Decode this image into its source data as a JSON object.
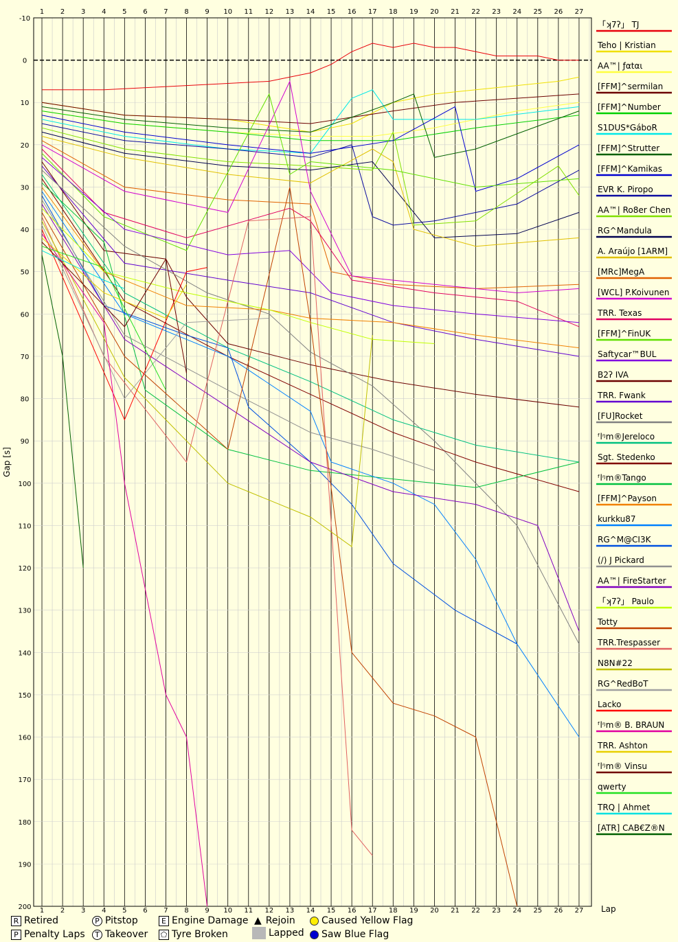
{
  "chart_data": {
    "type": "line",
    "title": "",
    "xlabel": "Lap",
    "ylabel": "Gap [s]",
    "xlim": [
      0.6,
      27.6
    ],
    "ylim": [
      -10,
      200
    ],
    "x_ticks": [
      1,
      2,
      3,
      4,
      5,
      6,
      7,
      8,
      9,
      10,
      11,
      12,
      13,
      14,
      15,
      16,
      17,
      18,
      19,
      20,
      21,
      22,
      23,
      24,
      25,
      26,
      27
    ],
    "y_ticks": [
      -10,
      0,
      10,
      20,
      30,
      40,
      50,
      60,
      70,
      80,
      90,
      100,
      110,
      120,
      130,
      140,
      150,
      160,
      170,
      180,
      190,
      200
    ],
    "grid": true,
    "legend_position": "right",
    "series": [
      {
        "name": "「ʞ7ʔ」 TJ",
        "color": "#e8000b",
        "x": [
          1,
          4,
          8,
          12,
          14,
          15,
          16,
          17,
          18,
          19,
          20,
          21,
          22,
          23,
          24,
          25,
          26,
          27
        ],
        "y": [
          7,
          7,
          6,
          5,
          3,
          1,
          -2,
          -4,
          -3,
          -4,
          -3,
          -3,
          -2,
          -1,
          -1,
          -1,
          0,
          0
        ]
      },
      {
        "name": "Teho | Kristian",
        "color": "#f0e000",
        "x": [
          1,
          5,
          10,
          14,
          16,
          18,
          20,
          22,
          24,
          26,
          27
        ],
        "y": [
          10,
          13,
          14,
          17,
          15,
          10,
          8,
          7,
          6,
          5,
          4
        ]
      },
      {
        "name": "AA™| ƒαtαι",
        "color": "#ffff40",
        "x": [
          1,
          5,
          10,
          14,
          17,
          20,
          24,
          27
        ],
        "y": [
          12,
          15,
          17,
          18,
          18,
          16,
          12,
          10
        ]
      },
      {
        "name": "[FFM]^sermilan",
        "color": "#6b0000",
        "x": [
          1,
          5,
          10,
          14,
          18,
          21,
          24,
          27
        ],
        "y": [
          10,
          13,
          14,
          15,
          12,
          10,
          9,
          8
        ]
      },
      {
        "name": "[FFM]^Number",
        "color": "#00d000",
        "x": [
          1,
          5,
          10,
          14,
          18,
          22,
          27
        ],
        "y": [
          12,
          15,
          17,
          19,
          19,
          16,
          13
        ]
      },
      {
        "name": "S1DUS*GáboR",
        "color": "#00e8e8",
        "x": [
          1,
          5,
          10,
          14,
          16,
          17,
          18,
          22,
          27
        ],
        "y": [
          14,
          18,
          21,
          22,
          9,
          7,
          14,
          14,
          11
        ]
      },
      {
        "name": "[FFM]^Strutter",
        "color": "#006000",
        "x": [
          1,
          5,
          10,
          14,
          18,
          19,
          20,
          22,
          27
        ],
        "y": [
          11,
          14,
          16,
          17,
          10,
          8,
          23,
          21,
          12
        ]
      },
      {
        "name": "[FFM]^Kamikas",
        "color": "#0000d0",
        "x": [
          1,
          5,
          10,
          14,
          18,
          21,
          22,
          24,
          27
        ],
        "y": [
          13,
          17,
          20,
          22,
          19,
          11,
          31,
          28,
          20
        ]
      },
      {
        "name": "EVR K. Piropo",
        "color": "#0a0aa0",
        "x": [
          1,
          5,
          10,
          14,
          16,
          17,
          18,
          20,
          24,
          27
        ],
        "y": [
          15,
          19,
          21,
          23,
          20,
          37,
          39,
          38,
          34,
          26
        ]
      },
      {
        "name": "AA™| Ro8er Chen",
        "color": "#80e000",
        "x": [
          1,
          5,
          10,
          14,
          17,
          18,
          19,
          22,
          26,
          27
        ],
        "y": [
          16,
          21,
          24,
          25,
          26,
          17,
          39,
          38,
          25,
          32
        ]
      },
      {
        "name": "RG^Mandula",
        "color": "#000050",
        "x": [
          1,
          5,
          10,
          14,
          17,
          20,
          24,
          27
        ],
        "y": [
          17,
          22,
          25,
          26,
          24,
          42,
          41,
          36
        ]
      },
      {
        "name": "A. Araújo [1ARM]",
        "color": "#e0c000",
        "x": [
          1,
          5,
          10,
          14,
          17,
          18,
          19,
          22,
          27
        ],
        "y": [
          18,
          23,
          27,
          29,
          21,
          24,
          40,
          44,
          42
        ]
      },
      {
        "name": "[MRc]MegA",
        "color": "#e06000",
        "x": [
          1,
          5,
          10,
          14,
          15,
          18,
          22,
          27
        ],
        "y": [
          19,
          30,
          33,
          34,
          50,
          53,
          54,
          53
        ]
      },
      {
        "name": "[WCL] P.Koivunen",
        "color": "#d000d0",
        "x": [
          1,
          5,
          10,
          13,
          14,
          16,
          20,
          24,
          27
        ],
        "y": [
          20,
          31,
          36,
          5,
          31,
          51,
          53,
          55,
          54
        ]
      },
      {
        "name": "TRR. Texas",
        "color": "#e00060",
        "x": [
          1,
          4,
          8,
          13,
          14,
          16,
          20,
          24,
          27
        ],
        "y": [
          21,
          36,
          42,
          35,
          38,
          52,
          55,
          57,
          63
        ]
      },
      {
        "name": "[FFM]^FinUK",
        "color": "#60e000",
        "x": [
          1,
          4,
          8,
          12,
          13,
          14,
          18,
          22,
          27
        ],
        "y": [
          22,
          37,
          45,
          8,
          27,
          24,
          26,
          30,
          28
        ]
      },
      {
        "name": "Saftycar™BUL",
        "color": "#8000e0",
        "x": [
          1,
          5,
          10,
          13,
          14,
          15,
          18,
          22,
          27
        ],
        "y": [
          23,
          40,
          46,
          45,
          50,
          55,
          58,
          60,
          62
        ]
      },
      {
        "name": "B2ʔ IVA",
        "color": "#6b0000",
        "x": [
          1,
          4,
          7,
          8,
          10,
          14,
          18,
          22,
          27
        ],
        "y": [
          24,
          45,
          47,
          56,
          67,
          72,
          76,
          79,
          82
        ]
      },
      {
        "name": "TRR. Fwank",
        "color": "#6000d0",
        "x": [
          1,
          5,
          10,
          14,
          18,
          22,
          27
        ],
        "y": [
          25,
          48,
          52,
          55,
          62,
          66,
          70
        ]
      },
      {
        "name": "[FU]Rocket",
        "color": "#808080",
        "x": [
          1,
          5,
          9,
          12,
          14,
          17,
          20,
          24,
          27
        ],
        "y": [
          26,
          44,
          55,
          60,
          69,
          77,
          90,
          110,
          138
        ]
      },
      {
        "name": "ᶠlᵑm®Jereloco",
        "color": "#00c080",
        "x": [
          1,
          5,
          10,
          14,
          18,
          22,
          27
        ],
        "y": [
          27,
          55,
          68,
          76,
          85,
          91,
          95
        ]
      },
      {
        "name": "Sgt. Stedenko",
        "color": "#800000",
        "x": [
          1,
          5,
          10,
          14,
          18,
          22,
          27
        ],
        "y": [
          28,
          57,
          70,
          79,
          88,
          95,
          102
        ]
      },
      {
        "name": "ᶠlᵑm®Tango",
        "color": "#00c040",
        "x": [
          1,
          4,
          6,
          10,
          14,
          18,
          22,
          27
        ],
        "y": [
          29,
          43,
          78,
          92,
          97,
          99,
          101,
          95
        ]
      },
      {
        "name": "[FFM]^Payson",
        "color": "#f08000",
        "x": [
          1,
          4,
          8,
          12,
          14,
          18,
          22,
          27
        ],
        "y": [
          30,
          50,
          58,
          59,
          61,
          62,
          65,
          68
        ]
      },
      {
        "name": "kurkku87",
        "color": "#0080ff",
        "x": [
          1,
          5,
          10,
          14,
          15,
          18,
          20,
          22,
          24,
          27
        ],
        "y": [
          31,
          60,
          70,
          83,
          95,
          100,
          105,
          118,
          138,
          160
        ]
      },
      {
        "name": "RG^M@CI3K",
        "color": "#0050e0",
        "x": [
          1,
          4,
          8,
          10,
          11,
          14,
          16,
          18,
          21,
          24
        ],
        "y": [
          32,
          58,
          65,
          68,
          82,
          95,
          105,
          119,
          130,
          138
        ]
      },
      {
        "name": "(/) J Pickard",
        "color": "#909090",
        "x": [
          1,
          5,
          10,
          14,
          17,
          20
        ],
        "y": [
          33,
          65,
          78,
          88,
          92,
          97
        ]
      },
      {
        "name": "AA™| FireStarter",
        "color": "#8000c0",
        "x": [
          1,
          5,
          10,
          14,
          18,
          22,
          25,
          27
        ],
        "y": [
          34,
          66,
          82,
          95,
          102,
          105,
          110,
          135
        ]
      },
      {
        "name": "「ʞ7ʔ」 Paulo",
        "color": "#c0ff00",
        "x": [
          1,
          4,
          8,
          12,
          14,
          17,
          20
        ],
        "y": [
          35,
          50,
          55,
          59,
          62,
          66,
          67
        ]
      },
      {
        "name": "Totty",
        "color": "#c04000",
        "x": [
          1,
          5,
          10,
          13,
          14,
          16,
          18,
          20,
          22,
          24
        ],
        "y": [
          36,
          70,
          92,
          30,
          62,
          140,
          152,
          155,
          160,
          200
        ]
      },
      {
        "name": "TRR.Trespasser",
        "color": "#e06060",
        "x": [
          1,
          4,
          8,
          11,
          14,
          16,
          17
        ],
        "y": [
          37,
          70,
          95,
          38,
          37,
          182,
          188
        ]
      },
      {
        "name": "N8N#22",
        "color": "#c0c000",
        "x": [
          1,
          5,
          10,
          14,
          16,
          17
        ],
        "y": [
          38,
          75,
          100,
          108,
          115,
          65
        ]
      },
      {
        "name": "RG^RedBoT",
        "color": "#a0a0a0",
        "x": [
          1,
          5,
          8,
          12
        ],
        "y": [
          39,
          80,
          62,
          61
        ]
      },
      {
        "name": "Lacko",
        "color": "#ff0000",
        "x": [
          1,
          5,
          8,
          9
        ],
        "y": [
          40,
          85,
          50,
          49
        ]
      },
      {
        "name": "ᶠlᵑm® B. BRAUN",
        "color": "#e000a0",
        "x": [
          1,
          4,
          5,
          7,
          8,
          9
        ],
        "y": [
          41,
          62,
          100,
          150,
          160,
          200
        ]
      },
      {
        "name": "TRR. Ashton",
        "color": "#e8d000",
        "x": [
          1,
          4,
          7,
          8
        ],
        "y": [
          42,
          55,
          61,
          53
        ]
      },
      {
        "name": "ᶠlᵑm® Vinsu",
        "color": "#700000",
        "x": [
          1,
          5,
          7,
          8
        ],
        "y": [
          43,
          63,
          47,
          74
        ]
      },
      {
        "name": "qwerty",
        "color": "#20e020",
        "x": [
          1,
          4,
          7
        ],
        "y": [
          44,
          49,
          78
        ]
      },
      {
        "name": "TRQ | Ahmet",
        "color": "#00e0e0",
        "x": [
          1,
          4,
          5
        ],
        "y": [
          45,
          52,
          54
        ]
      },
      {
        "name": "[ATR] CAB€Z®N",
        "color": "#006000",
        "x": [
          1,
          2,
          3
        ],
        "y": [
          46,
          70,
          120
        ]
      }
    ]
  },
  "key": {
    "retired": "Retired",
    "penalty": "Penalty Laps",
    "pitstop": "Pitstop",
    "takeover": "Takeover",
    "engine": "Engine Damage",
    "tyre": "Tyre Broken",
    "rejoin": "Rejoin",
    "lapped": "Lapped",
    "yellow": "Caused Yellow Flag",
    "blue": "Saw Blue Flag",
    "retired_symbol": "R",
    "penalty_symbol": "P",
    "pitstop_symbol": "P",
    "takeover_symbol": "T",
    "engine_symbol": "E",
    "rejoin_symbol": "▲"
  },
  "colors": {
    "background": "#ffffe0",
    "yellow_flag": "#ffee00",
    "blue_flag": "#0000d0",
    "lapped": "#b8b8b8"
  }
}
